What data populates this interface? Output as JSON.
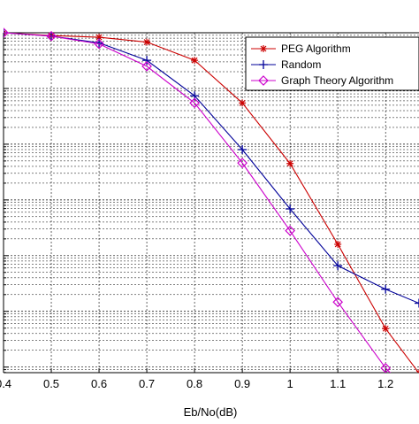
{
  "chart_data": {
    "type": "line",
    "title": "",
    "xlabel": "Eb/No(dB)",
    "ylabel": "",
    "xlim": [
      0.4,
      1.27
    ],
    "ylim_log10": [
      -6.1,
      0
    ],
    "yscale": "log",
    "grid": true,
    "legend_position": "top-right",
    "x_tick_labels": [
      "0.4",
      "0.5",
      "0.6",
      "0.7",
      "0.8",
      "0.9",
      "1",
      "1.1",
      "1.2"
    ],
    "x_ticks": [
      0.4,
      0.5,
      0.6,
      0.7,
      0.8,
      0.9,
      1.0,
      1.1,
      1.2
    ],
    "y_decades": [
      0,
      -1,
      -2,
      -3,
      -4,
      -5,
      -6
    ],
    "series": [
      {
        "name": "PEG Algorithm",
        "color": "#cc0000",
        "marker": "star",
        "x": [
          0.4,
          0.5,
          0.6,
          0.7,
          0.8,
          0.9,
          1.0,
          1.1,
          1.2,
          1.27
        ],
        "y": [
          1.0,
          0.89,
          0.83,
          0.68,
          0.32,
          0.055,
          0.0045,
          0.00016,
          4.9e-06,
          7.8e-07
        ]
      },
      {
        "name": "Random",
        "color": "#000099",
        "marker": "plus",
        "x": [
          0.4,
          0.5,
          0.6,
          0.7,
          0.8,
          0.9,
          1.0,
          1.1,
          1.2,
          1.27
        ],
        "y": [
          1.0,
          0.87,
          0.66,
          0.32,
          0.074,
          0.008,
          0.00069,
          6.6e-05,
          2.5e-05,
          1.4e-05
        ]
      },
      {
        "name": "Graph Theory Algorithm",
        "color": "#cc00cc",
        "marker": "diamond",
        "x": [
          0.4,
          0.5,
          0.6,
          0.7,
          0.8,
          0.9,
          1.0,
          1.1,
          1.2,
          1.27
        ],
        "y": [
          1.0,
          0.87,
          0.63,
          0.25,
          0.055,
          0.0046,
          0.00028,
          1.47e-05,
          9.6e-07,
          2.4e-07
        ]
      }
    ]
  }
}
